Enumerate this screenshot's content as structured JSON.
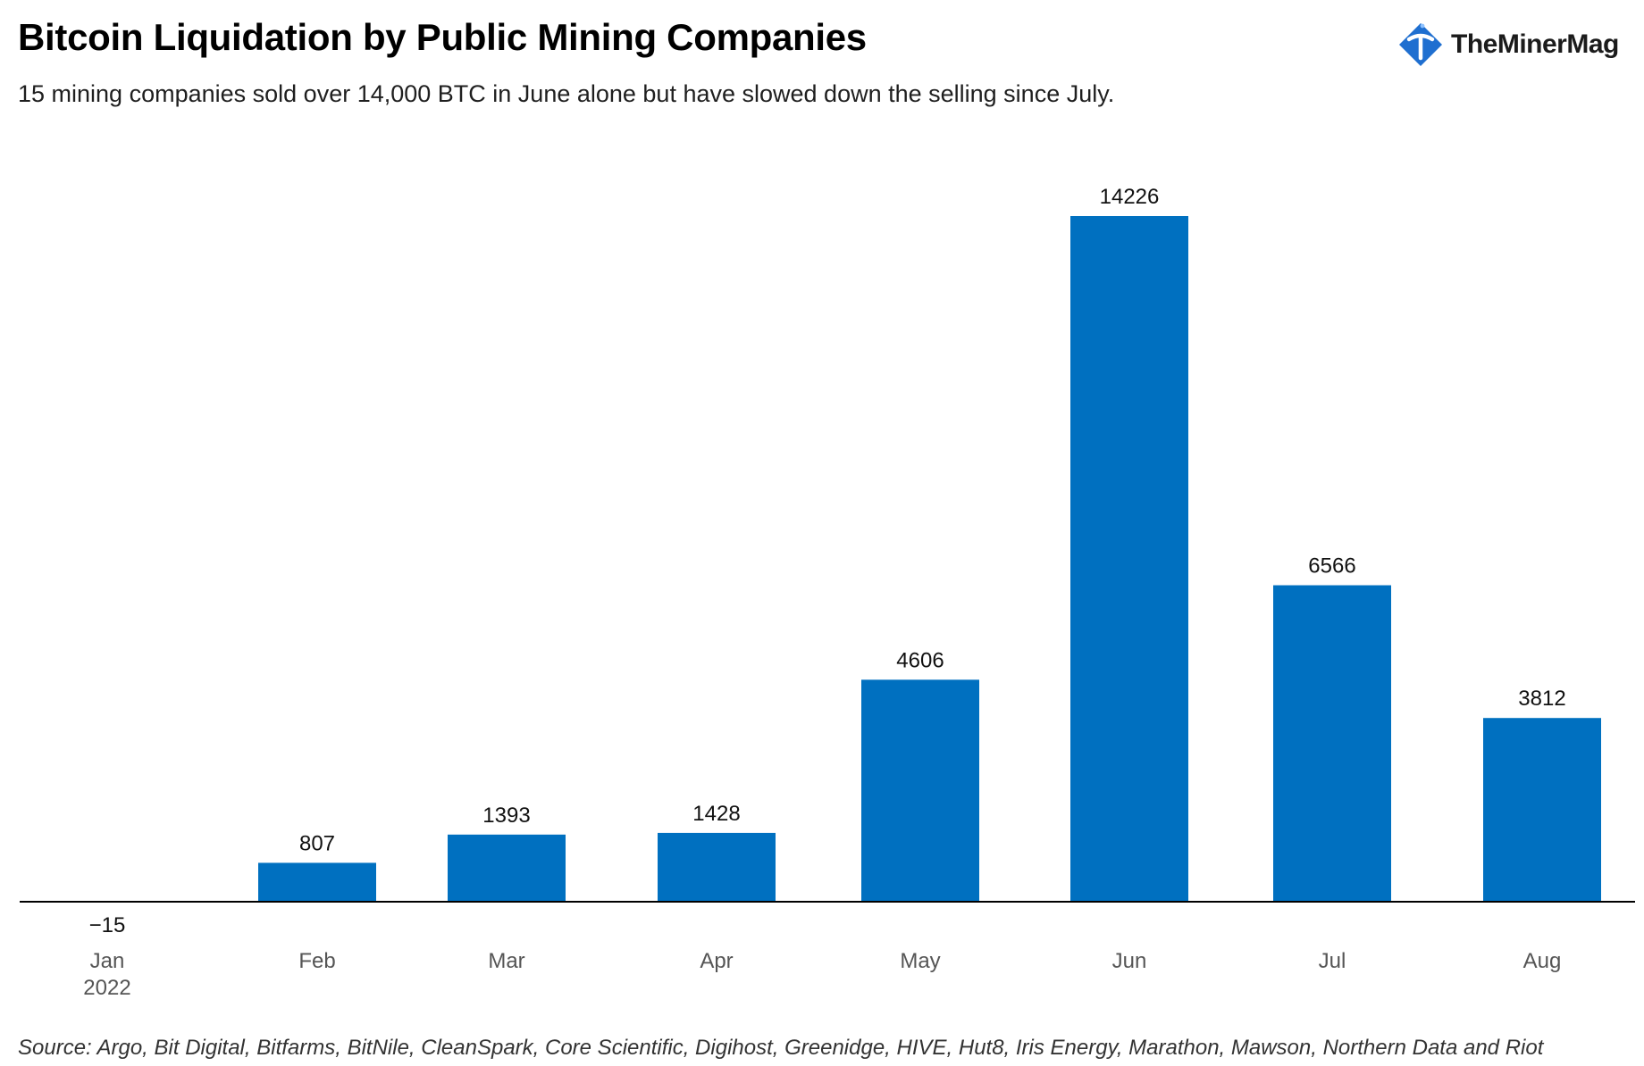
{
  "header": {
    "title": "Bitcoin Liquidation by Public Mining Companies",
    "subtitle": "15 mining companies sold over 14,000 BTC in June alone but have slowed down the selling since July."
  },
  "logo": {
    "text": "TheMinerMag",
    "icon": "pickaxe-logo-icon",
    "color": "#1f6fd0"
  },
  "chart_data": {
    "type": "bar",
    "title": "Bitcoin Liquidation by Public Mining Companies",
    "categories": [
      "Jan",
      "Feb",
      "Mar",
      "Apr",
      "May",
      "Jun",
      "Jul",
      "Aug"
    ],
    "year_label": "2022",
    "values": [
      -15,
      807,
      1393,
      1428,
      4606,
      14226,
      6566,
      3812
    ],
    "data_labels": [
      "−15",
      "807",
      "1393",
      "1428",
      "4606",
      "14226",
      "6566",
      "3812"
    ],
    "bar_color": "#0070c0",
    "xlabel": "",
    "ylabel": "",
    "ylim": [
      -15,
      14226
    ],
    "grid": false,
    "legend": false
  },
  "footer": {
    "source": "Source: Argo, Bit Digital, Bitfarms, BitNile, CleanSpark, Core Scientific, Digihost, Greenidge, HIVE, Hut8, Iris Energy, Marathon, Mawson, Northern Data and Riot"
  }
}
